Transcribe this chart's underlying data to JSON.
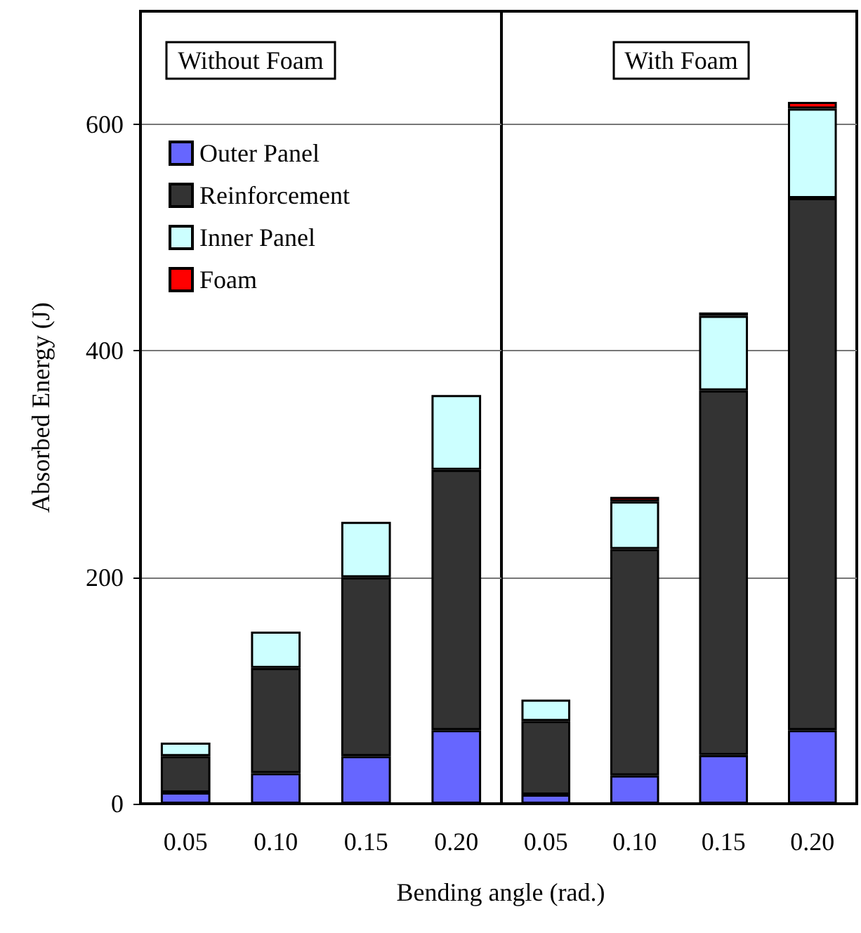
{
  "chart_data": [
    {
      "type": "bar",
      "title": "Without Foam",
      "xlabel": "Bending angle (rad.)",
      "ylabel": "Absorbed Energy (J)",
      "categories": [
        "0.05",
        "0.10",
        "0.15",
        "0.20"
      ],
      "stacked": true,
      "ylim": [
        0,
        700
      ],
      "yticks": [
        0,
        200,
        400,
        600
      ],
      "grid": "y",
      "legend": "top left",
      "series": [
        {
          "name": "Outer Panel",
          "color": "#6666ff",
          "values": [
            10,
            27,
            42,
            65
          ]
        },
        {
          "name": "Reinforcement",
          "color": "#333333",
          "values": [
            32,
            93,
            158,
            230
          ]
        },
        {
          "name": "Inner Panel",
          "color": "#ccffff",
          "values": [
            12,
            32,
            49,
            66
          ]
        },
        {
          "name": "Foam",
          "color": "#ff0000",
          "values": [
            null,
            null,
            null,
            null
          ]
        }
      ]
    },
    {
      "type": "bar",
      "title": "With Foam",
      "categories": [
        "0.05",
        "0.10",
        "0.15",
        "0.20"
      ],
      "stacked": true,
      "ylim": [
        0,
        700
      ],
      "yticks": [
        0,
        200,
        400,
        600
      ],
      "grid": "y",
      "tick_labels": "x",
      "series": [
        {
          "color": "#6666ff",
          "values": [
            8,
            25,
            43,
            65
          ]
        },
        {
          "color": "#333333",
          "values": [
            65,
            200,
            322,
            470
          ]
        },
        {
          "color": "#ccffff",
          "values": [
            19,
            42,
            66,
            79
          ]
        },
        {
          "color": "#ff0000",
          "values": [
            null,
            4,
            3,
            6
          ]
        }
      ]
    }
  ]
}
